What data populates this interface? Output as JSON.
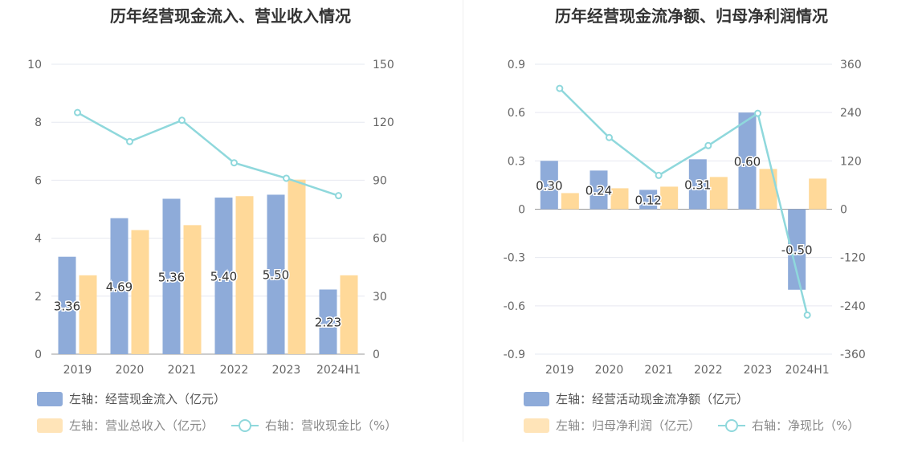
{
  "colors": {
    "bar_primary": "#8eabd9",
    "bar_secondary": "#ffd999",
    "line": "#8fd8dc",
    "grid": "#e6e8f0",
    "axis_text": "#666666"
  },
  "chart_data": [
    {
      "type": "bar",
      "title": "历年经营现金流入、营业收入情况",
      "categories": [
        "2019",
        "2020",
        "2021",
        "2022",
        "2023",
        "2024H1"
      ],
      "left_axis": {
        "ylim": [
          0,
          10
        ],
        "ticks": [
          "0",
          "2",
          "4",
          "6",
          "8",
          "10"
        ]
      },
      "right_axis": {
        "ylim": [
          0,
          150
        ],
        "ticks": [
          "0",
          "30",
          "60",
          "90",
          "120",
          "150"
        ]
      },
      "series": [
        {
          "name": "左轴：经营现金流入（亿元）",
          "type": "bar",
          "axis": "left",
          "values": [
            3.36,
            4.69,
            5.36,
            5.4,
            5.5,
            2.23
          ],
          "labels": [
            "3.36",
            "4.69",
            "5.36",
            "5.40",
            "5.50",
            "2.23"
          ]
        },
        {
          "name": "左轴：营业总收入（亿元）",
          "type": "bar",
          "axis": "left",
          "values": [
            2.72,
            4.28,
            4.45,
            5.45,
            6.02,
            2.72
          ]
        },
        {
          "name": "右轴：营收现金比（%）",
          "type": "line",
          "axis": "right",
          "values": [
            125,
            110,
            121,
            99,
            91,
            82
          ]
        }
      ]
    },
    {
      "type": "bar",
      "title": "历年经营现金流净额、归母净利润情况",
      "categories": [
        "2019",
        "2020",
        "2021",
        "2022",
        "2023",
        "2024H1"
      ],
      "left_axis": {
        "ylim": [
          -0.9,
          0.9
        ],
        "ticks": [
          "-0.9",
          "-0.6",
          "-0.3",
          "0",
          "0.3",
          "0.6",
          "0.9"
        ]
      },
      "right_axis": {
        "ylim": [
          -360,
          360
        ],
        "ticks": [
          "-360",
          "-240",
          "-120",
          "0",
          "120",
          "240",
          "360"
        ]
      },
      "series": [
        {
          "name": "左轴：经营活动现金流净额（亿元）",
          "type": "bar",
          "axis": "left",
          "values": [
            0.3,
            0.24,
            0.12,
            0.31,
            0.6,
            -0.5
          ],
          "labels": [
            "0.30",
            "0.24",
            "0.12",
            "0.31",
            "0.60",
            "-0.50"
          ]
        },
        {
          "name": "左轴：归母净利润（亿元）",
          "type": "bar",
          "axis": "left",
          "values": [
            0.1,
            0.13,
            0.14,
            0.2,
            0.25,
            0.19
          ]
        },
        {
          "name": "右轴：净现比（%）",
          "type": "line",
          "axis": "right",
          "values": [
            300,
            178,
            84,
            158,
            238,
            -263
          ]
        }
      ]
    }
  ]
}
